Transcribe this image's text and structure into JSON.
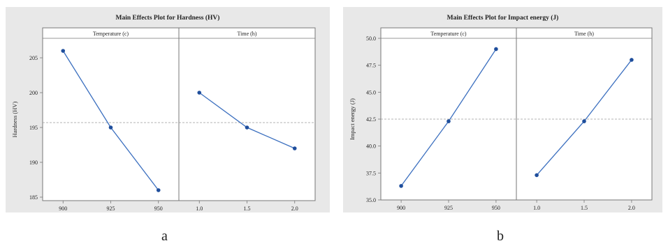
{
  "chart_data": [
    {
      "type": "line",
      "title": "Main Effects Plot for Hardness (HV)",
      "ylabel": "Hardness (HV)",
      "ylim": [
        184.5,
        207.8
      ],
      "yticks": [
        "185",
        "190",
        "195",
        "200",
        "205"
      ],
      "mean_reference": 195.7,
      "panels": [
        {
          "header": "Temperature (c)",
          "x": [
            "900",
            "925",
            "950"
          ],
          "y": [
            206,
            195,
            186
          ]
        },
        {
          "header": "Time (h)",
          "x": [
            "1.0",
            "1.5",
            "2.0"
          ],
          "y": [
            200,
            195,
            192
          ]
        }
      ],
      "figure_label": "a"
    },
    {
      "type": "line",
      "title": "Main Effects Plot for Impact energy (J)",
      "ylabel": "Impact energy (J)",
      "ylim": [
        35.0,
        50.0
      ],
      "yticks": [
        "35.0",
        "37.5",
        "40.0",
        "42.5",
        "45.0",
        "47.5",
        "50.0"
      ],
      "mean_reference": 42.5,
      "panels": [
        {
          "header": "Temperature (c)",
          "x": [
            "900",
            "925",
            "950"
          ],
          "y": [
            36.3,
            42.3,
            49.0
          ]
        },
        {
          "header": "Time (h)",
          "x": [
            "1.0",
            "1.5",
            "2.0"
          ],
          "y": [
            37.3,
            42.3,
            48.0
          ]
        }
      ],
      "figure_label": "b"
    }
  ],
  "colors": {
    "panel_bg": "#e8e8e8",
    "plot_bg": "#ffffff",
    "line": "#3b6fbf",
    "marker": "#1f4e9c",
    "reference": "#9a9a9a",
    "frame": "#777777",
    "text": "#222222"
  }
}
